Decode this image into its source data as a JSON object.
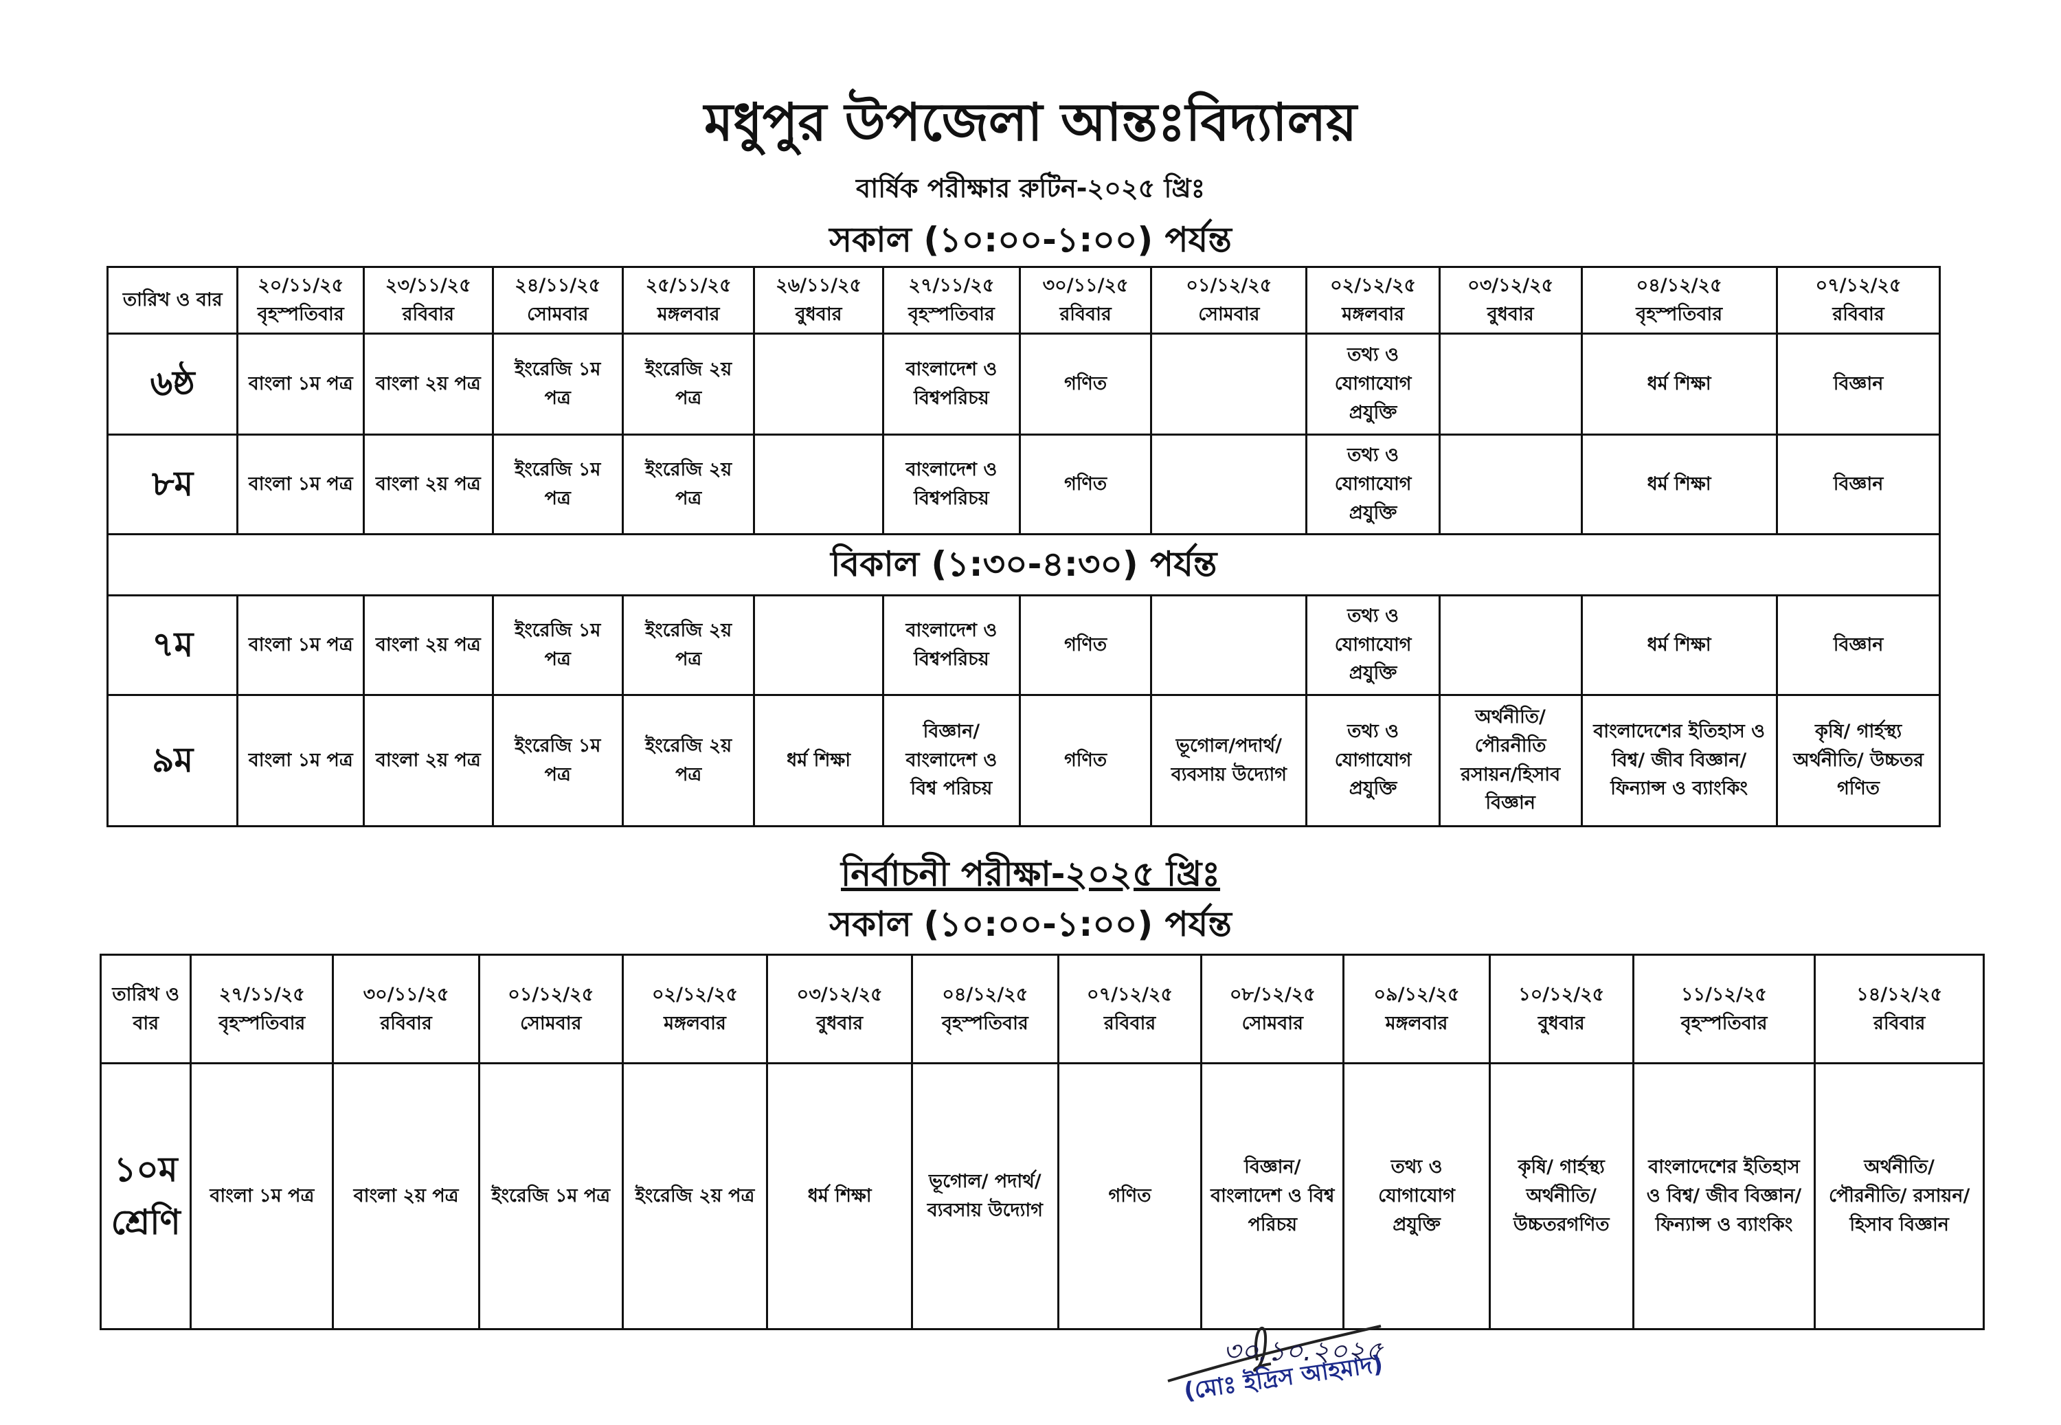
{
  "header": {
    "title": "মধুপুর উপজেলা আন্তঃবিদ্যালয়",
    "subtitle": "বার্ষিক পরীক্ষার রুটিন-২০২৫ খ্রিঃ",
    "shift": "সকাল (১০:০০-১:০০) পর্যন্ত"
  },
  "annual_table": {
    "corner": "তারিখ ও বার",
    "columns": [
      {
        "date": "২০/১১/২৫",
        "day": "বৃহস্পতিবার"
      },
      {
        "date": "২৩/১১/২৫",
        "day": "রবিবার"
      },
      {
        "date": "২৪/১১/২৫",
        "day": "সোমবার"
      },
      {
        "date": "২৫/১১/২৫",
        "day": "মঙ্গলবার"
      },
      {
        "date": "২৬/১১/২৫",
        "day": "বুধবার"
      },
      {
        "date": "২৭/১১/২৫",
        "day": "বৃহস্পতিবার"
      },
      {
        "date": "৩০/১১/২৫",
        "day": "রবিবার"
      },
      {
        "date": "০১/১২/২৫",
        "day": "সোমবার"
      },
      {
        "date": "০২/১২/২৫",
        "day": "মঙ্গলবার"
      },
      {
        "date": "০৩/১২/২৫",
        "day": "বুধবার"
      },
      {
        "date": "০৪/১২/২৫",
        "day": "বৃহস্পতিবার"
      },
      {
        "date": "০৭/১২/২৫",
        "day": "রবিবার"
      }
    ],
    "rows": [
      {
        "class": "৬ষ্ঠ",
        "cells": [
          "বাংলা ১ম পত্র",
          "বাংলা ২য় পত্র",
          "ইংরেজি ১ম পত্র",
          "ইংরেজি ২য় পত্র",
          null,
          "বাংলাদেশ ও বিশ্বপরিচয়",
          "গণিত",
          null,
          "তথ্য ও যোগাযোগ প্রযুক্তি",
          null,
          "ধর্ম শিক্ষা",
          "বিজ্ঞান"
        ]
      },
      {
        "class": "৮ম",
        "cells": [
          "বাংলা ১ম পত্র",
          "বাংলা ২য় পত্র",
          "ইংরেজি ১ম পত্র",
          "ইংরেজি ২য় পত্র",
          null,
          "বাংলাদেশ ও বিশ্বপরিচয়",
          "গণিত",
          null,
          "তথ্য ও যোগাযোগ প্রযুক্তি",
          null,
          "ধর্ম শিক্ষা",
          "বিজ্ঞান"
        ]
      }
    ],
    "afternoon_shift": "বিকাল (১:৩০-৪:৩০) পর্যন্ত",
    "afternoon_rows": [
      {
        "class": "৭ম",
        "cells": [
          "বাংলা ১ম পত্র",
          "বাংলা ২য় পত্র",
          "ইংরেজি ১ম পত্র",
          "ইংরেজি ২য় পত্র",
          null,
          "বাংলাদেশ ও বিশ্বপরিচয়",
          "গণিত",
          null,
          "তথ্য ও যোগাযোগ প্রযুক্তি",
          null,
          "ধর্ম শিক্ষা",
          "বিজ্ঞান"
        ]
      },
      {
        "class": "৯ম",
        "cells": [
          "বাংলা ১ম পত্র",
          "বাংলা ২য় পত্র",
          "ইংরেজি ১ম পত্র",
          "ইংরেজি ২য় পত্র",
          "ধর্ম শিক্ষা",
          "বিজ্ঞান/ বাংলাদেশ ও বিশ্ব পরিচয়",
          "গণিত",
          "ভূগোল/পদার্থ/ ব্যবসায় উদ্যোগ",
          "তথ্য ও যোগাযোগ প্রযুক্তি",
          "অর্থনীতি/ পৌরনীতি রসায়ন/হিসাব বিজ্ঞান",
          "বাংলাদেশের ইতিহাস ও বিশ্ব/ জীব বিজ্ঞান/ফিন্যান্স ও ব্যাংকিং",
          "কৃষি/ গার্হস্থ্য অর্থনীতি/ উচ্চতর গণিত"
        ]
      }
    ]
  },
  "test_exam": {
    "title": "নির্বাচনী পরীক্ষা-২০২৫ খ্রিঃ",
    "shift": "সকাল (১০:০০-১:০০) পর্যন্ত",
    "corner": "তারিখ ও বার",
    "columns": [
      {
        "date": "২৭/১১/২৫",
        "day": "বৃহস্পতিবার"
      },
      {
        "date": "৩০/১১/২৫",
        "day": "রবিবার"
      },
      {
        "date": "০১/১২/২৫",
        "day": "সোমবার"
      },
      {
        "date": "০২/১২/২৫",
        "day": "মঙ্গলবার"
      },
      {
        "date": "০৩/১২/২৫",
        "day": "বুধবার"
      },
      {
        "date": "০৪/১২/২৫",
        "day": "বৃহস্পতিবার"
      },
      {
        "date": "০৭/১২/২৫",
        "day": "রবিবার"
      },
      {
        "date": "০৮/১২/২৫",
        "day": "সোমবার"
      },
      {
        "date": "০৯/১২/২৫",
        "day": "মঙ্গলবার"
      },
      {
        "date": "১০/১২/২৫",
        "day": "বুধবার"
      },
      {
        "date": "১১/১২/২৫",
        "day": "বৃহস্পতিবার"
      },
      {
        "date": "১৪/১২/২৫",
        "day": "রবিবার"
      }
    ],
    "rows": [
      {
        "class": "১০ম শ্রেণি",
        "cells": [
          "বাংলা ১ম পত্র",
          "বাংলা ২য় পত্র",
          "ইংরেজি ১ম পত্র",
          "ইংরেজি ২য় পত্র",
          "ধর্ম শিক্ষা",
          "ভূগোল/ পদার্থ/ ব্যবসায় উদ্যোগ",
          "গণিত",
          "বিজ্ঞান/ বাংলাদেশ ও বিশ্ব পরিচয়",
          "তথ্য ও যোগাযোগ প্রযুক্তি",
          "কৃষি/ গার্হস্থ্য অর্থনীতি/ উচ্চতরগণিত",
          "বাংলাদেশের ইতিহাস ও বিশ্ব/ জীব বিজ্ঞান/ফিন্যান্স ও ব্যাংকিং",
          "অর্থনীতি/ পৌরনীতি/ রসায়ন/হিসাব বিজ্ঞান"
        ]
      }
    ]
  },
  "signature": {
    "date": "৩০.১০.২০২৫",
    "name": "(মোঃ ইদ্রিস আহমাদ)"
  }
}
